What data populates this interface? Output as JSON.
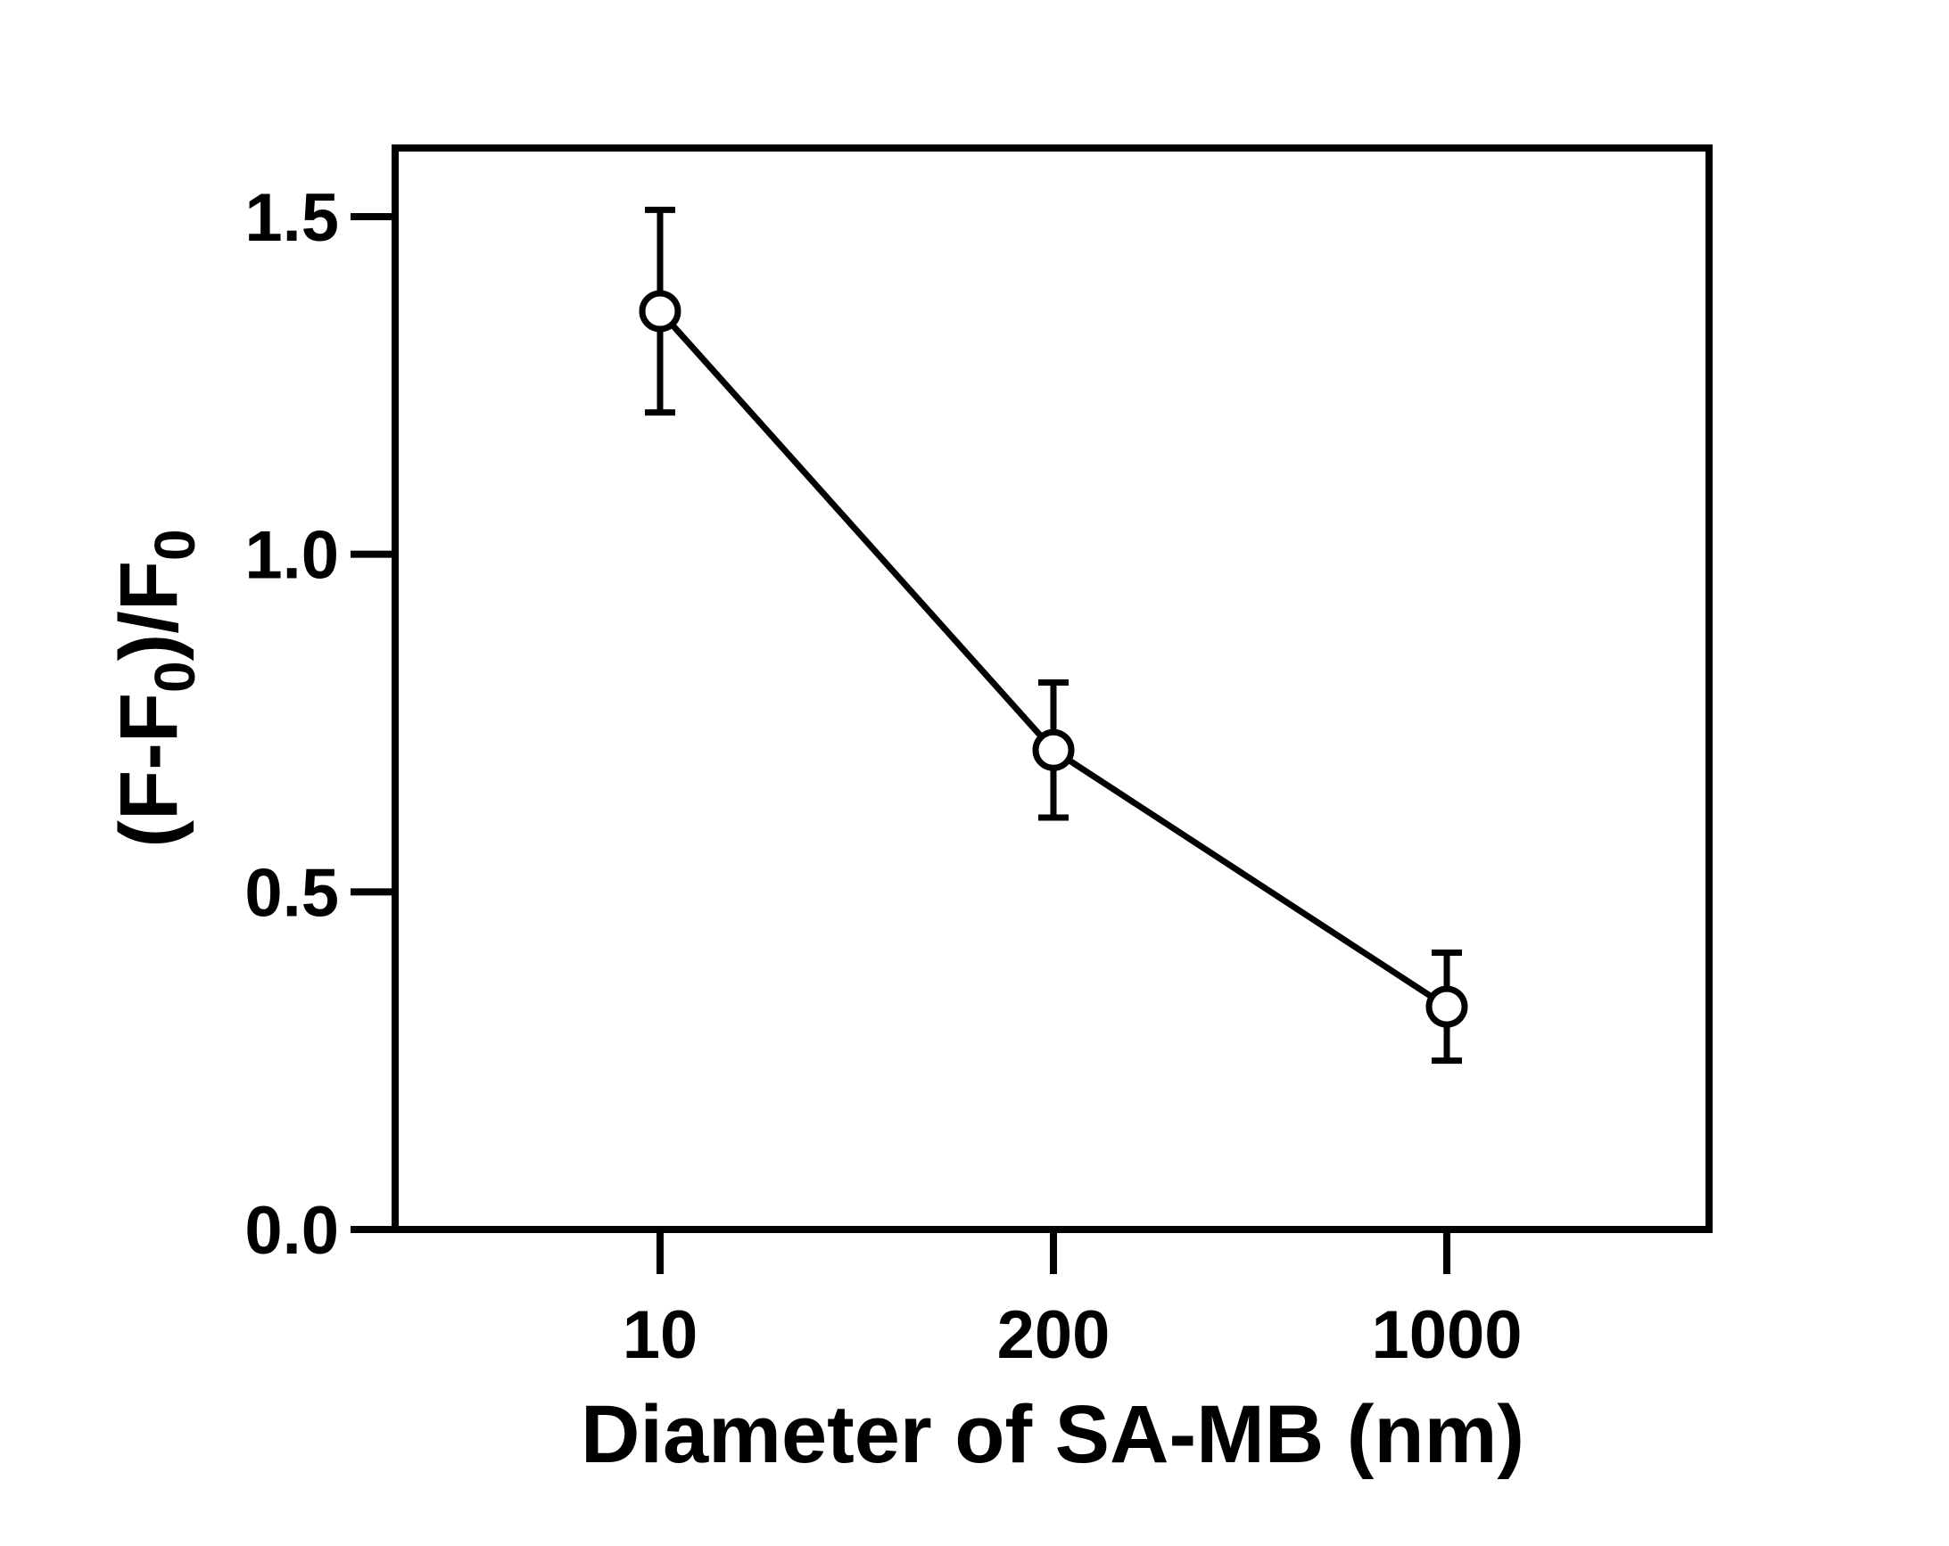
{
  "chart_data": {
    "type": "line",
    "title": "",
    "xlabel": "Diameter of SA-MB (nm)",
    "ylabel": {
      "main": "(F-F",
      "sub1": "0",
      "mid": ")/F",
      "sub2": "0"
    },
    "categories": [
      "10",
      "200",
      "1000"
    ],
    "series": [
      {
        "values": [
          1.36,
          0.71,
          0.33
        ],
        "error": [
          [
            0.15,
            0.15
          ],
          [
            0.1,
            0.1
          ],
          [
            0.08,
            0.08
          ]
        ],
        "marker": "open-circle",
        "color": "#000000"
      }
    ],
    "ylim": [
      0,
      1.6
    ],
    "yticks": [
      0.0,
      0.5,
      1.0,
      1.5
    ],
    "ytick_labels": [
      "0.0",
      "0.5",
      "1.0",
      "1.5"
    ],
    "grid": false,
    "legend": "none"
  }
}
